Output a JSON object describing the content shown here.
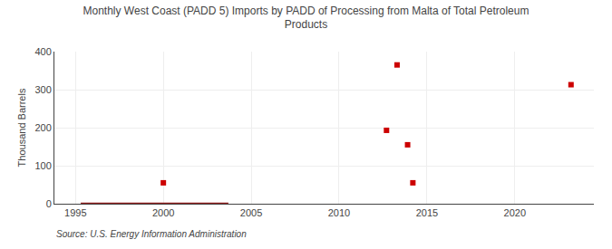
{
  "chart_data": {
    "type": "scatter",
    "title": "Monthly West Coast (PADD 5) Imports by PADD of Processing from Malta of Total Petroleum\nProducts",
    "ylabel": "Thousand Barrels",
    "annotations": [
      "Source: U.S. Energy Information Administration"
    ],
    "series": [
      {
        "type": "line",
        "color": "#8b1a1a",
        "line_style": "solid",
        "x": [
          1995.3,
          2003.7
        ],
        "values": [
          0,
          0
        ]
      },
      {
        "type": "scatter",
        "color": "#cc0000",
        "marker": "square",
        "x": [
          2000.0,
          2012.7,
          2013.3,
          2013.9,
          2014.2,
          2023.2
        ],
        "values": [
          55,
          193,
          365,
          155,
          55,
          313
        ]
      }
    ],
    "xlim": [
      1993.8,
      2024.5
    ],
    "xticks": [
      1995,
      2000,
      2005,
      2010,
      2015,
      2020
    ],
    "ylim": [
      0,
      400
    ],
    "yticks": [
      0,
      100,
      200,
      300,
      400
    ],
    "grid": true
  }
}
